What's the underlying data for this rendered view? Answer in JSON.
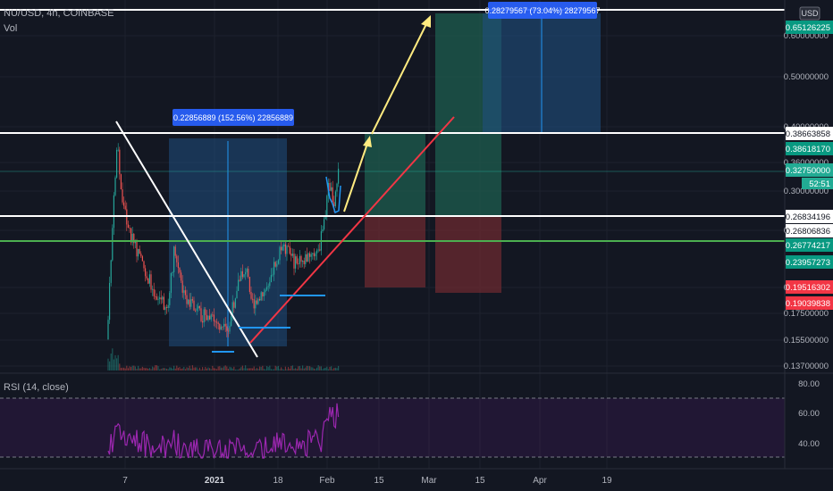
{
  "header": {
    "symbol_line": "NU/USD, 4h, COINBASE",
    "volume_label": "Vol",
    "rsi_label": "RSI (14, close)",
    "currency_button": "USD",
    "countdown": "52:51"
  },
  "colors": {
    "background": "#131722",
    "bull": "#26a69a",
    "bear": "#ef5350",
    "rsi_line": "#9c27b0",
    "long_profit_zone": "#1e5d4f",
    "long_stop_zone": "#6b2a30",
    "range_box": "#1f4f7f",
    "support_line": "#ffffff",
    "green_line": "#4caf50",
    "trend_line": "#f23645",
    "projection_arrow": "#ffeb80"
  },
  "chart_data": {
    "type": "candlestick",
    "symbol": "NU/USD",
    "timeframe": "4h",
    "exchange": "COINBASE",
    "price_axis": {
      "ticks": [
        "0.60000000",
        "0.50000000",
        "0.40000000",
        "0.36000000",
        "0.30000000",
        "0.26000000",
        "0.24000000",
        "0.20000000",
        "0.17500000",
        "0.15500000",
        "0.13700000"
      ]
    },
    "time_axis": {
      "ticks": [
        "7",
        "2021",
        "18",
        "Feb",
        "15",
        "Mar",
        "15",
        "Apr",
        "19"
      ]
    },
    "price_labels": [
      {
        "text": "0.65126225",
        "style": "green"
      },
      {
        "text": "0.38663858",
        "style": "white"
      },
      {
        "text": "0.38618170",
        "style": "green"
      },
      {
        "text": "0.32750000",
        "style": "teal"
      },
      {
        "text": "0.26834196",
        "style": "white"
      },
      {
        "text": "0.26806836",
        "style": "white"
      },
      {
        "text": "0.26774217",
        "style": "green"
      },
      {
        "text": "0.23957273",
        "style": "green"
      },
      {
        "text": "0.19516302",
        "style": "red"
      },
      {
        "text": "0.19039838",
        "style": "red"
      }
    ],
    "measurements": [
      {
        "text": "0.22856889 (152.56%) 22856889"
      },
      {
        "text": "0.28279567 (73.04%) 28279567"
      }
    ],
    "horizontal_levels": [
      0.655,
      0.3866,
      0.2683,
      0.2677
    ],
    "rsi": {
      "name": "RSI (14, close)",
      "ticks": [
        "80.00",
        "60.00",
        "40.00"
      ],
      "upper_band": 70,
      "lower_band": 30,
      "ylim": [
        25,
        85
      ]
    }
  }
}
